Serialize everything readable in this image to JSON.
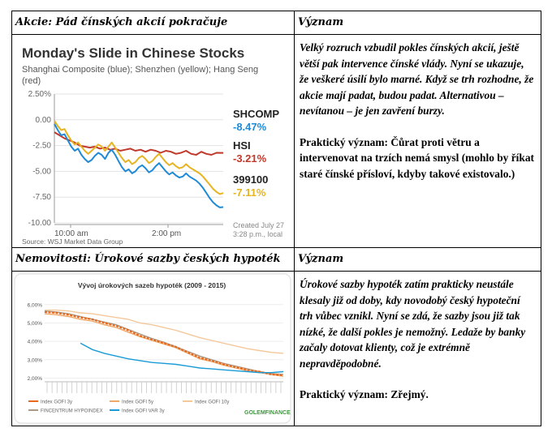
{
  "table": {
    "row1_left_header": "Akcie: Pád čínských akcií pokračuje",
    "row1_right_header": "Význam",
    "row1_text_1": "Velký rozruch vzbudil pokles čínských akcií, ještě větší pak intervence čínské vlády. Nyní se ukazuje, že veškeré úsilí bylo marné. Když se trh rozhodne, že akcie mají padat, budou padat. Alternativou – nevítanou – je jen zavření burzy.",
    "row1_text_2": "Praktický význam: Čůrat proti větru a intervenovat na trzích nemá smysl (mohlo by říkat staré čínské přísloví, kdyby takové existovalo.)",
    "row2_left_header": "Nemovitosti: Úrokové sazby českých hypoték",
    "row2_right_header": "Význam",
    "row2_text_1": "Úrokové sazby hypoték zatím prakticky neustále klesaly již od doby, kdy novodobý český hypoteční trh vůbec vznikl. Nyní se zdá, že sazby jsou již tak nízké, že další pokles je nemožný. Ledaže by banky začaly dotovat klienty, což je extrémně nepravděpodobné.",
    "row2_text_2": "Praktický význam: Zřejmý."
  },
  "chart_data": [
    {
      "type": "line",
      "title": "Monday's Slide in Chinese Stocks",
      "subtitle": "Shanghai Composite (blue); Shenzhen (yellow); Hang Seng (red)",
      "y_ticks": [
        "2.50%",
        "0.00",
        "-2.50",
        "-5.00",
        "-7.50",
        "-10.00"
      ],
      "ylim": [
        -10,
        2.5
      ],
      "x_ticks": [
        "10:00 am",
        "2:00 pm"
      ],
      "series": [
        {
          "name": "SHCOMP",
          "value_label": "-8.47%",
          "color": "#1f8ad6",
          "x": [
            0,
            2,
            4,
            6,
            8,
            10,
            12,
            14,
            16,
            18,
            20,
            22,
            24,
            26,
            28,
            30,
            32,
            34,
            36,
            38,
            40,
            42,
            44,
            46,
            48,
            50,
            52,
            54,
            56,
            58,
            60,
            62,
            64,
            66,
            68,
            70,
            72,
            74,
            76,
            78,
            80,
            82,
            84,
            86,
            88,
            90,
            92,
            94,
            96,
            98,
            100
          ],
          "values": [
            -0.4,
            -1.0,
            -1.5,
            -1.4,
            -2.0,
            -2.6,
            -3.0,
            -2.8,
            -3.4,
            -3.8,
            -4.1,
            -3.9,
            -3.5,
            -3.2,
            -3.4,
            -3.8,
            -3.2,
            -2.9,
            -3.4,
            -4.0,
            -4.6,
            -5.0,
            -4.8,
            -5.2,
            -5.0,
            -4.6,
            -4.4,
            -4.7,
            -5.1,
            -4.9,
            -4.5,
            -4.2,
            -4.6,
            -5.0,
            -5.3,
            -5.1,
            -5.4,
            -5.6,
            -5.5,
            -5.2,
            -5.5,
            -5.7,
            -5.9,
            -6.2,
            -6.6,
            -7.1,
            -7.6,
            -8.0,
            -8.3,
            -8.5,
            -8.47
          ]
        },
        {
          "name": "HSI",
          "value_label": "-3.21%",
          "color": "#c0392b",
          "x": [
            0,
            3,
            6,
            9,
            12,
            15,
            18,
            21,
            24,
            27,
            30,
            33,
            36,
            39,
            42,
            45,
            48,
            51,
            54,
            57,
            60,
            63,
            66,
            69,
            72,
            75,
            78,
            81,
            84,
            87,
            90,
            93,
            96,
            100
          ],
          "values": [
            -1.2,
            -1.5,
            -1.8,
            -2.0,
            -2.2,
            -2.5,
            -2.6,
            -2.7,
            -2.6,
            -2.8,
            -2.7,
            -2.9,
            -2.8,
            -3.0,
            -2.9,
            -2.8,
            -3.0,
            -2.9,
            -3.1,
            -2.9,
            -3.0,
            -3.2,
            -3.0,
            -3.1,
            -3.3,
            -3.2,
            -3.0,
            -3.3,
            -3.4,
            -3.1,
            -3.3,
            -3.4,
            -3.2,
            -3.21
          ]
        },
        {
          "name": "399100",
          "value_label": "-7.11%",
          "color": "#e6b422",
          "x": [
            0,
            2,
            4,
            6,
            8,
            10,
            12,
            14,
            16,
            18,
            20,
            22,
            24,
            26,
            28,
            30,
            32,
            34,
            36,
            38,
            40,
            42,
            44,
            46,
            48,
            50,
            52,
            54,
            56,
            58,
            60,
            62,
            64,
            66,
            68,
            70,
            72,
            74,
            76,
            78,
            80,
            82,
            84,
            86,
            88,
            90,
            92,
            94,
            96,
            98,
            100
          ],
          "values": [
            -0.1,
            -0.6,
            -1.0,
            -0.9,
            -1.5,
            -2.0,
            -2.4,
            -2.2,
            -2.6,
            -3.0,
            -3.3,
            -3.0,
            -2.7,
            -2.4,
            -2.6,
            -3.0,
            -2.6,
            -2.2,
            -2.7,
            -3.2,
            -3.7,
            -4.1,
            -3.9,
            -4.3,
            -4.1,
            -3.7,
            -3.5,
            -3.8,
            -4.2,
            -4.0,
            -3.6,
            -3.3,
            -3.7,
            -4.1,
            -4.4,
            -4.2,
            -4.5,
            -4.7,
            -4.6,
            -4.3,
            -4.6,
            -4.8,
            -5.0,
            -5.2,
            -5.5,
            -5.9,
            -6.3,
            -6.7,
            -7.0,
            -7.2,
            -7.11
          ]
        }
      ],
      "footnote": "Created July 27 3:28 p.m., local",
      "source": "Source: WSJ Market Data Group"
    },
    {
      "type": "line",
      "title": "Vývoj úrokových sazeb hypoték (2009 - 2015)",
      "y_ticks": [
        "6,00%",
        "5,00%",
        "4,00%",
        "3,00%",
        "2,00%"
      ],
      "ylim": [
        1.8,
        6.3
      ],
      "legend": [
        "Index GOFI 3y",
        "Index GOFI 5y",
        "Index GOFI 10y",
        "FINCENTRUM HYPOINDEX",
        "Index GOFI VAR 3y"
      ],
      "series": [
        {
          "name": "Index GOFI 3y",
          "color": "#e8691e",
          "x": [
            0,
            5,
            10,
            15,
            20,
            25,
            30,
            35,
            40,
            45,
            50,
            55,
            60,
            65,
            70,
            75,
            80,
            85,
            90,
            95,
            100
          ],
          "values": [
            5.6,
            5.55,
            5.45,
            5.3,
            5.2,
            5.0,
            4.85,
            4.6,
            4.3,
            4.1,
            3.9,
            3.7,
            3.4,
            3.1,
            2.95,
            2.75,
            2.6,
            2.45,
            2.35,
            2.2,
            2.15
          ]
        },
        {
          "name": "Index GOFI 5y",
          "color": "#f0a868",
          "x": [
            0,
            5,
            10,
            15,
            20,
            25,
            30,
            35,
            40,
            45,
            50,
            55,
            60,
            65,
            70,
            75,
            80,
            85,
            90,
            95,
            100
          ],
          "values": [
            5.5,
            5.45,
            5.35,
            5.2,
            5.1,
            4.9,
            4.75,
            4.5,
            4.25,
            4.05,
            3.85,
            3.65,
            3.35,
            3.05,
            2.9,
            2.7,
            2.55,
            2.4,
            2.3,
            2.2,
            2.1
          ]
        },
        {
          "name": "Index GOFI 10y",
          "color": "#f4c89a",
          "x": [
            0,
            5,
            10,
            15,
            20,
            25,
            30,
            35,
            40,
            45,
            50,
            55,
            60,
            65,
            70,
            75,
            80,
            85,
            90,
            95,
            100
          ],
          "values": [
            5.7,
            5.7,
            5.65,
            5.55,
            5.5,
            5.4,
            5.3,
            5.2,
            5.0,
            4.9,
            4.75,
            4.6,
            4.4,
            4.2,
            4.05,
            3.9,
            3.75,
            3.6,
            3.5,
            3.4,
            3.35
          ]
        },
        {
          "name": "FINCENTRUM HYPOINDEX",
          "color": "#a89a86",
          "x": [
            0,
            5,
            10,
            15,
            20,
            25,
            30,
            35,
            40,
            45,
            50,
            55,
            60,
            65,
            70,
            75,
            80,
            85,
            90,
            95,
            100
          ],
          "values": [
            5.65,
            5.6,
            5.5,
            5.35,
            5.2,
            5.05,
            4.9,
            4.65,
            4.4,
            4.15,
            3.95,
            3.7,
            3.45,
            3.2,
            3.0,
            2.8,
            2.65,
            2.5,
            2.35,
            2.25,
            2.2
          ]
        },
        {
          "name": "Index GOFI VAR 3y",
          "color": "#1a9bd7",
          "x": [
            15,
            20,
            25,
            30,
            35,
            40,
            45,
            50,
            55,
            60,
            65,
            70,
            75,
            80,
            85,
            90,
            95,
            100
          ],
          "values": [
            3.9,
            3.55,
            3.35,
            3.2,
            3.05,
            2.95,
            2.85,
            2.8,
            2.75,
            2.65,
            2.55,
            2.5,
            2.45,
            2.4,
            2.35,
            2.3,
            2.3,
            2.35
          ]
        }
      ],
      "brand": "GOLEMFINANCE"
    }
  ]
}
